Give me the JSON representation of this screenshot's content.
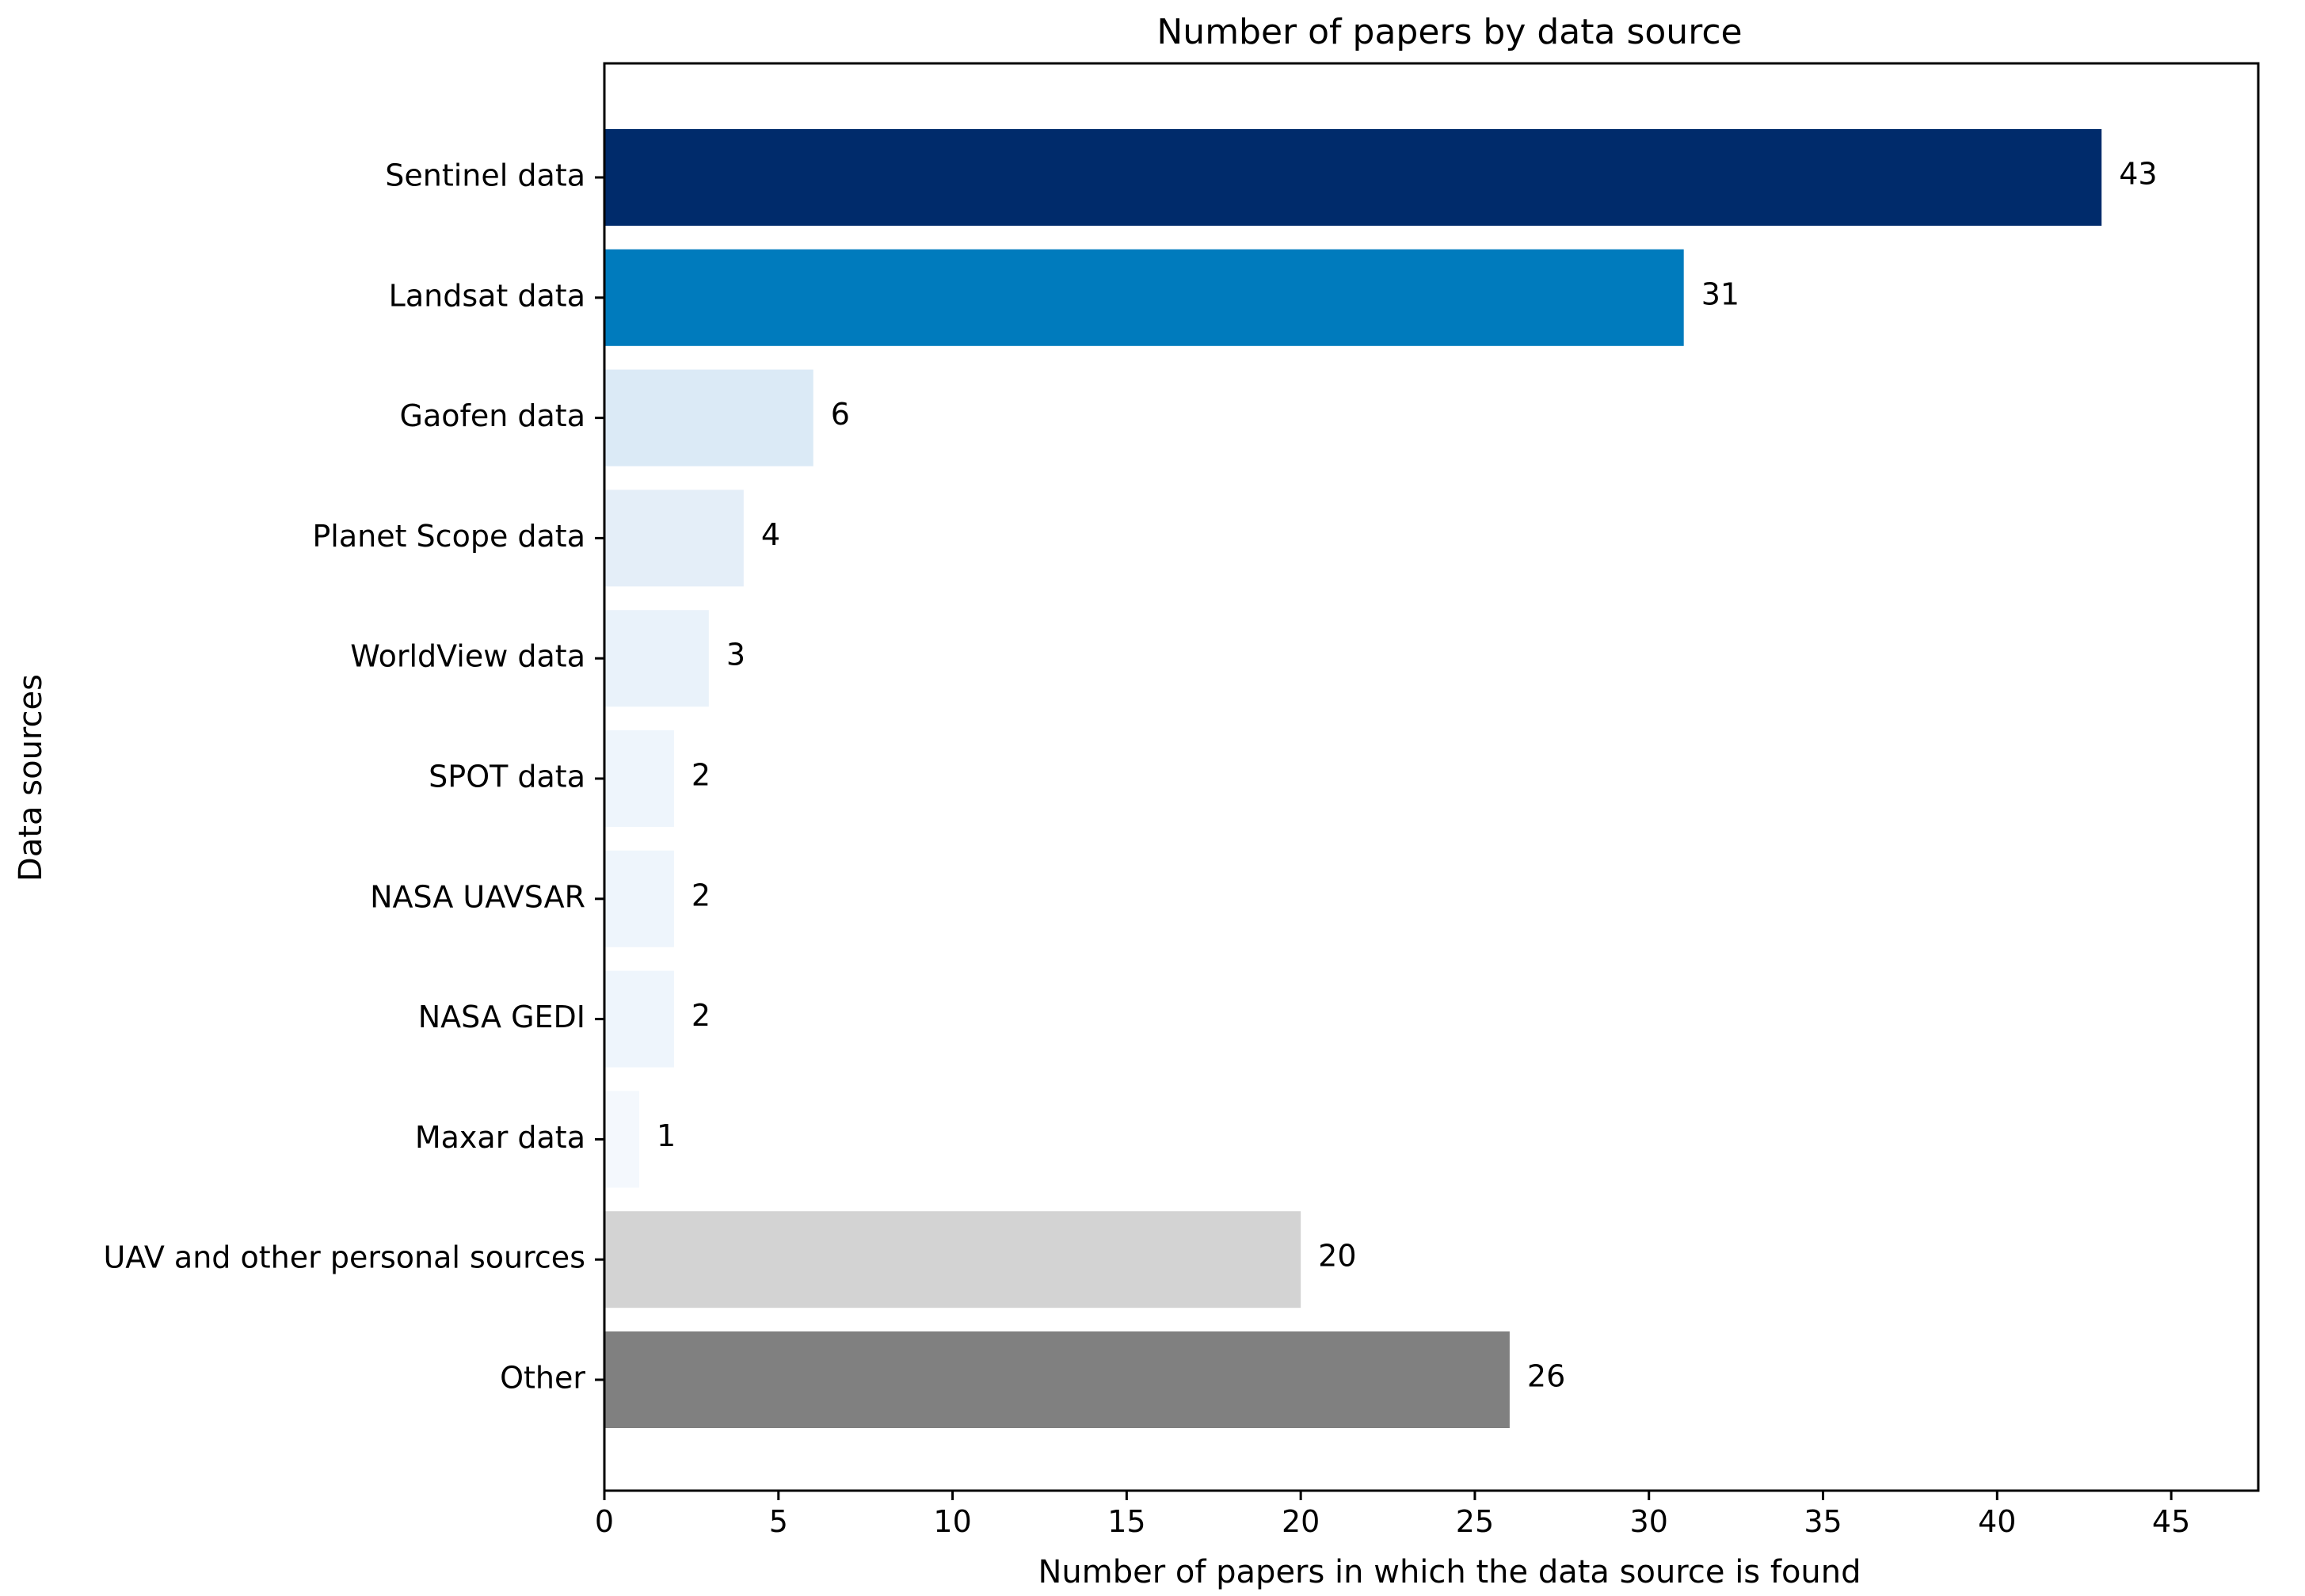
{
  "chart_data": {
    "type": "bar",
    "orientation": "horizontal",
    "title": "Number of papers by data source",
    "xlabel": "Number of papers in which the data source is found",
    "ylabel": "Data sources",
    "xlim": [
      0,
      47.5
    ],
    "xticks": [
      0,
      5,
      10,
      15,
      20,
      25,
      30,
      35,
      40,
      45
    ],
    "grid": false,
    "legend": "none",
    "categories": [
      "Sentinel data",
      "Landsat data",
      "Gaofen data",
      "Planet Scope data",
      "WorldView data",
      "SPOT data",
      "NASA UAVSAR",
      "NASA GEDI",
      "Maxar data",
      "UAV and other personal sources",
      "Other"
    ],
    "values": [
      43,
      31,
      6,
      4,
      3,
      2,
      2,
      2,
      1,
      20,
      26
    ],
    "colors": [
      "#002b6b",
      "#007bbd",
      "#dbeaf6",
      "#e4eef8",
      "#e9f2fa",
      "#eef5fc",
      "#eef5fc",
      "#eef5fc",
      "#f4f8fd",
      "#d3d3d3",
      "#808080"
    ]
  }
}
